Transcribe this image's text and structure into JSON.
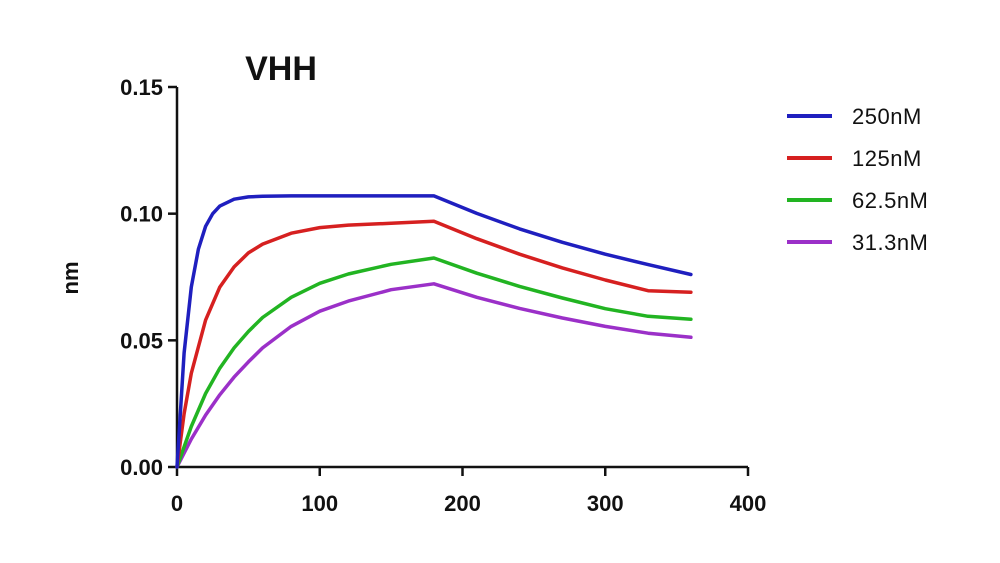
{
  "chart_data": {
    "type": "line",
    "title": "VHH",
    "xlabel": "",
    "ylabel": "nm",
    "xlim": [
      0,
      400
    ],
    "ylim": [
      0,
      0.15
    ],
    "x_ticks": [
      0,
      100,
      200,
      300,
      400
    ],
    "x_tick_labels": [
      "0",
      "100",
      "200",
      "300",
      "400"
    ],
    "y_ticks": [
      0,
      0.05,
      0.1,
      0.15
    ],
    "y_tick_labels": [
      "0.00",
      "0.05",
      "0.10",
      "0.15"
    ],
    "grid": false,
    "legend_placement": "right",
    "series": [
      {
        "name": "250nM",
        "color": "#1f1fbf",
        "x": [
          0,
          5,
          10,
          15,
          20,
          25,
          30,
          40,
          50,
          60,
          80,
          100,
          120,
          150,
          180,
          210,
          240,
          270,
          300,
          330,
          360
        ],
        "y": [
          0,
          0.045,
          0.071,
          0.086,
          0.095,
          0.1,
          0.103,
          0.1057,
          0.1066,
          0.1069,
          0.107,
          0.107,
          0.107,
          0.107,
          0.107,
          0.1001,
          0.094,
          0.0887,
          0.084,
          0.0799,
          0.076
        ]
      },
      {
        "name": "125nM",
        "color": "#d62020",
        "x": [
          0,
          5,
          10,
          20,
          30,
          40,
          50,
          60,
          80,
          100,
          120,
          150,
          180,
          210,
          240,
          270,
          300,
          330,
          360
        ],
        "y": [
          0,
          0.021,
          0.037,
          0.058,
          0.071,
          0.079,
          0.0845,
          0.088,
          0.0923,
          0.0945,
          0.0955,
          0.0962,
          0.097,
          0.0901,
          0.084,
          0.0786,
          0.0738,
          0.0696,
          0.069
        ]
      },
      {
        "name": "62.5nM",
        "color": "#22b422",
        "x": [
          0,
          10,
          20,
          30,
          40,
          50,
          60,
          80,
          100,
          120,
          150,
          180,
          210,
          240,
          270,
          300,
          330,
          360
        ],
        "y": [
          0,
          0.016,
          0.029,
          0.039,
          0.047,
          0.0535,
          0.059,
          0.067,
          0.0725,
          0.0762,
          0.08,
          0.0825,
          0.0765,
          0.0713,
          0.0667,
          0.0625,
          0.0595,
          0.0583
        ]
      },
      {
        "name": "31.3nM",
        "color": "#9b30c8",
        "x": [
          0,
          10,
          20,
          30,
          40,
          50,
          60,
          80,
          100,
          120,
          150,
          180,
          210,
          240,
          270,
          300,
          330,
          360
        ],
        "y": [
          0,
          0.011,
          0.0205,
          0.0285,
          0.0355,
          0.0415,
          0.047,
          0.0555,
          0.0615,
          0.0655,
          0.07,
          0.0723,
          0.067,
          0.0626,
          0.0588,
          0.0555,
          0.0528,
          0.0512
        ]
      }
    ]
  }
}
